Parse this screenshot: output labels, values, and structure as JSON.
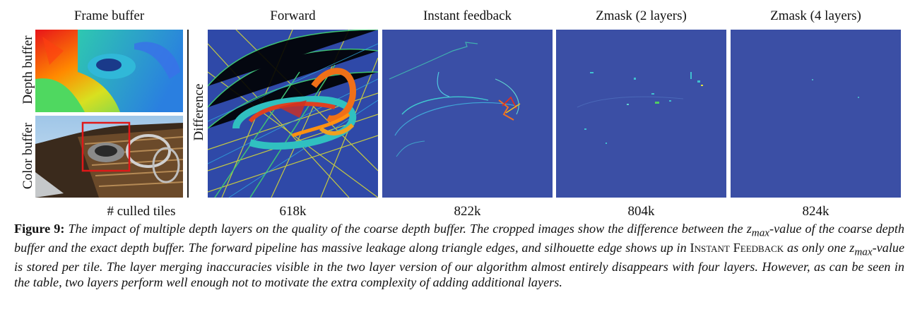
{
  "figure": {
    "titles": {
      "frame_buffer": "Frame buffer",
      "forward": "Forward",
      "instant_feedback": "Instant feedback",
      "zmask2": "Zmask (2 layers)",
      "zmask4": "Zmask (4 layers)"
    },
    "row_labels": {
      "depth": "Depth buffer",
      "color": "Color buffer",
      "difference": "Difference"
    },
    "table": {
      "label": "# culled tiles",
      "forward": "618k",
      "instant_feedback": "822k",
      "zmask2": "804k",
      "zmask4": "824k"
    }
  },
  "caption": {
    "label": "Figure 9:",
    "part1": "The impact of multiple depth layers on the quality of the coarse depth buffer. The cropped images show the difference between the",
    "zmax": "z",
    "zmax_sub": "max",
    "part2": "-value of the coarse depth buffer and the exact depth buffer. The forward pipeline has massive leakage along triangle edges, and silhouette edge shows up in",
    "method": "Instant Feedback",
    "part3": "as only one",
    "part4": "-value is stored per tile. The layer merging inaccuracies visible in the two layer version of our algorithm almost entirely disappears with four layers. However, as can be seen in the table, two layers perform well enough not to motivate the extra complexity of adding additional layers."
  }
}
